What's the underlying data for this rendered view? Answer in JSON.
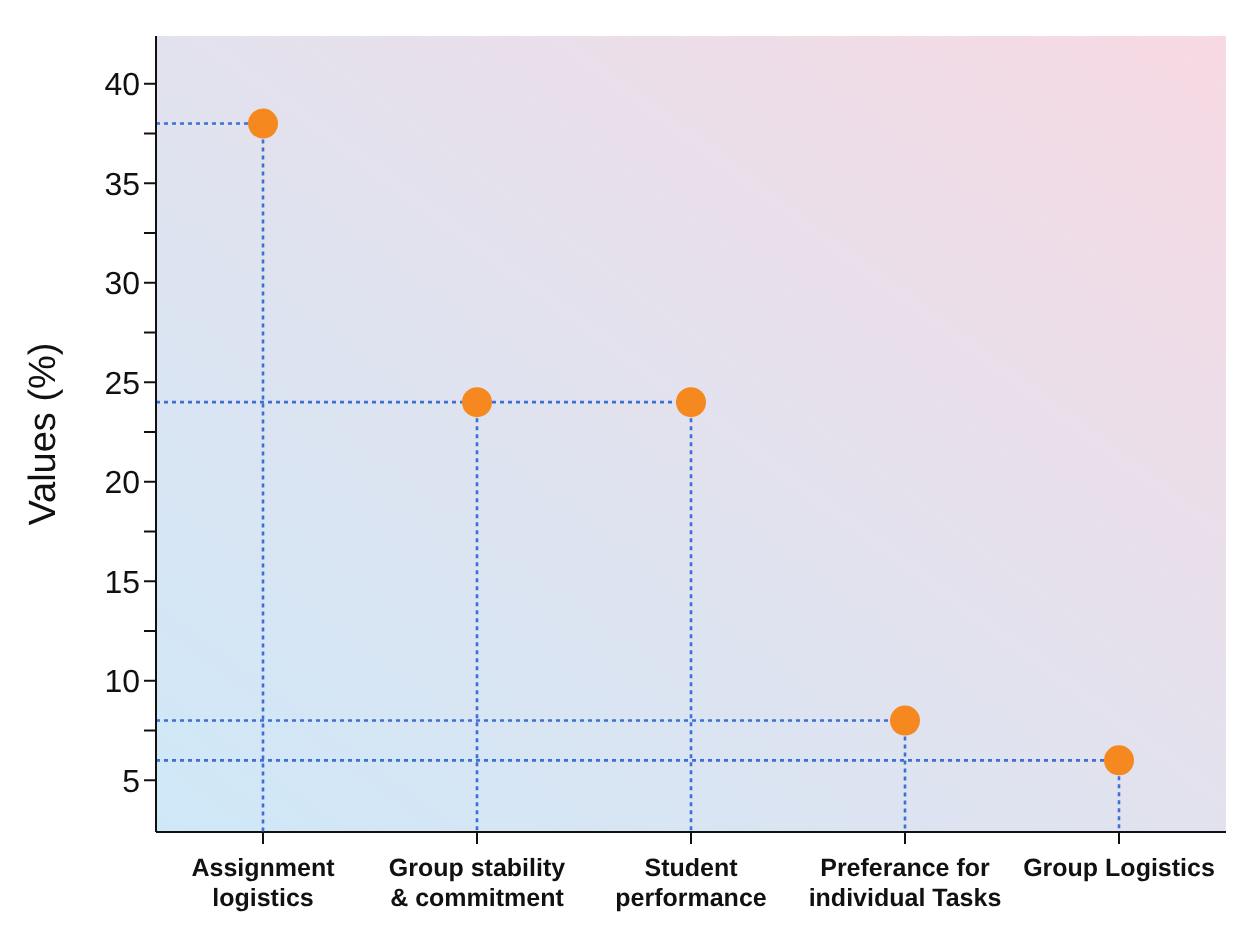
{
  "chart_data": {
    "type": "scatter",
    "ylabel": "Values (%)",
    "categories": [
      "Assignment logistics",
      "Group stability & commitment",
      "Student performance",
      "Preferance for individual Tasks",
      "Group Logistics"
    ],
    "series": [
      {
        "color": "#f5891f",
        "values": [
          38,
          24,
          24,
          8,
          6
        ]
      }
    ],
    "ylim": [
      2.4,
      42.4
    ],
    "yticks": [
      5,
      {
        "value": 7.5,
        "label": null
      },
      10,
      {
        "value": 12.5,
        "label": null
      },
      15,
      {
        "value": 17.5,
        "label": null
      },
      20,
      {
        "value": 22.5,
        "label": null
      },
      25,
      {
        "value": 27.5,
        "label": null
      },
      30,
      {
        "value": 32.5,
        "label": null
      },
      35,
      {
        "value": 37.5,
        "label": null
      },
      40
    ],
    "ref_lines": [
      {
        "axis": "y",
        "value": 38,
        "color": "#3d6fd6",
        "line_style": "dotted"
      },
      {
        "axis": "y",
        "value": 24,
        "color": "#3d6fd6",
        "line_style": "dotted"
      },
      {
        "axis": "y",
        "value": 8,
        "color": "#3d6fd6",
        "line_style": "dotted"
      },
      {
        "axis": "y",
        "value": 6,
        "color": "#3d6fd6",
        "line_style": "dotted"
      }
    ],
    "marker": "circle",
    "grid": false,
    "legend": false
  }
}
